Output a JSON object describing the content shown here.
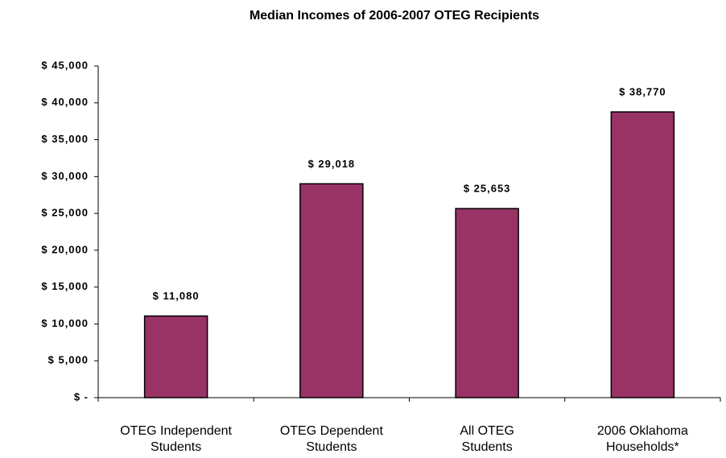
{
  "chart_data": {
    "type": "bar",
    "title": "Median Incomes of 2006-2007 OTEG Recipients",
    "categories": [
      "OTEG Independent Students",
      "OTEG Dependent Students",
      "All OTEG Students",
      "2006 Oklahoma Households*"
    ],
    "values": [
      11080,
      29018,
      25653,
      38770
    ],
    "value_labels": [
      "$ 11,080",
      "$ 29,018",
      "$ 25,653",
      "$ 38,770"
    ],
    "color": "#993366",
    "ylim": [
      0,
      45000
    ],
    "yticks": [
      {
        "value": 0,
        "label": "$ -"
      },
      {
        "value": 5000,
        "label": "$ 5,000"
      },
      {
        "value": 10000,
        "label": "$ 10,000"
      },
      {
        "value": 15000,
        "label": "$ 15,000"
      },
      {
        "value": 20000,
        "label": "$ 20,000"
      },
      {
        "value": 25000,
        "label": "$ 25,000"
      },
      {
        "value": 30000,
        "label": "$ 30,000"
      },
      {
        "value": 35000,
        "label": "$ 35,000"
      },
      {
        "value": 40000,
        "label": "$ 40,000"
      },
      {
        "value": 45000,
        "label": "$ 45,000"
      }
    ],
    "grid": false
  }
}
